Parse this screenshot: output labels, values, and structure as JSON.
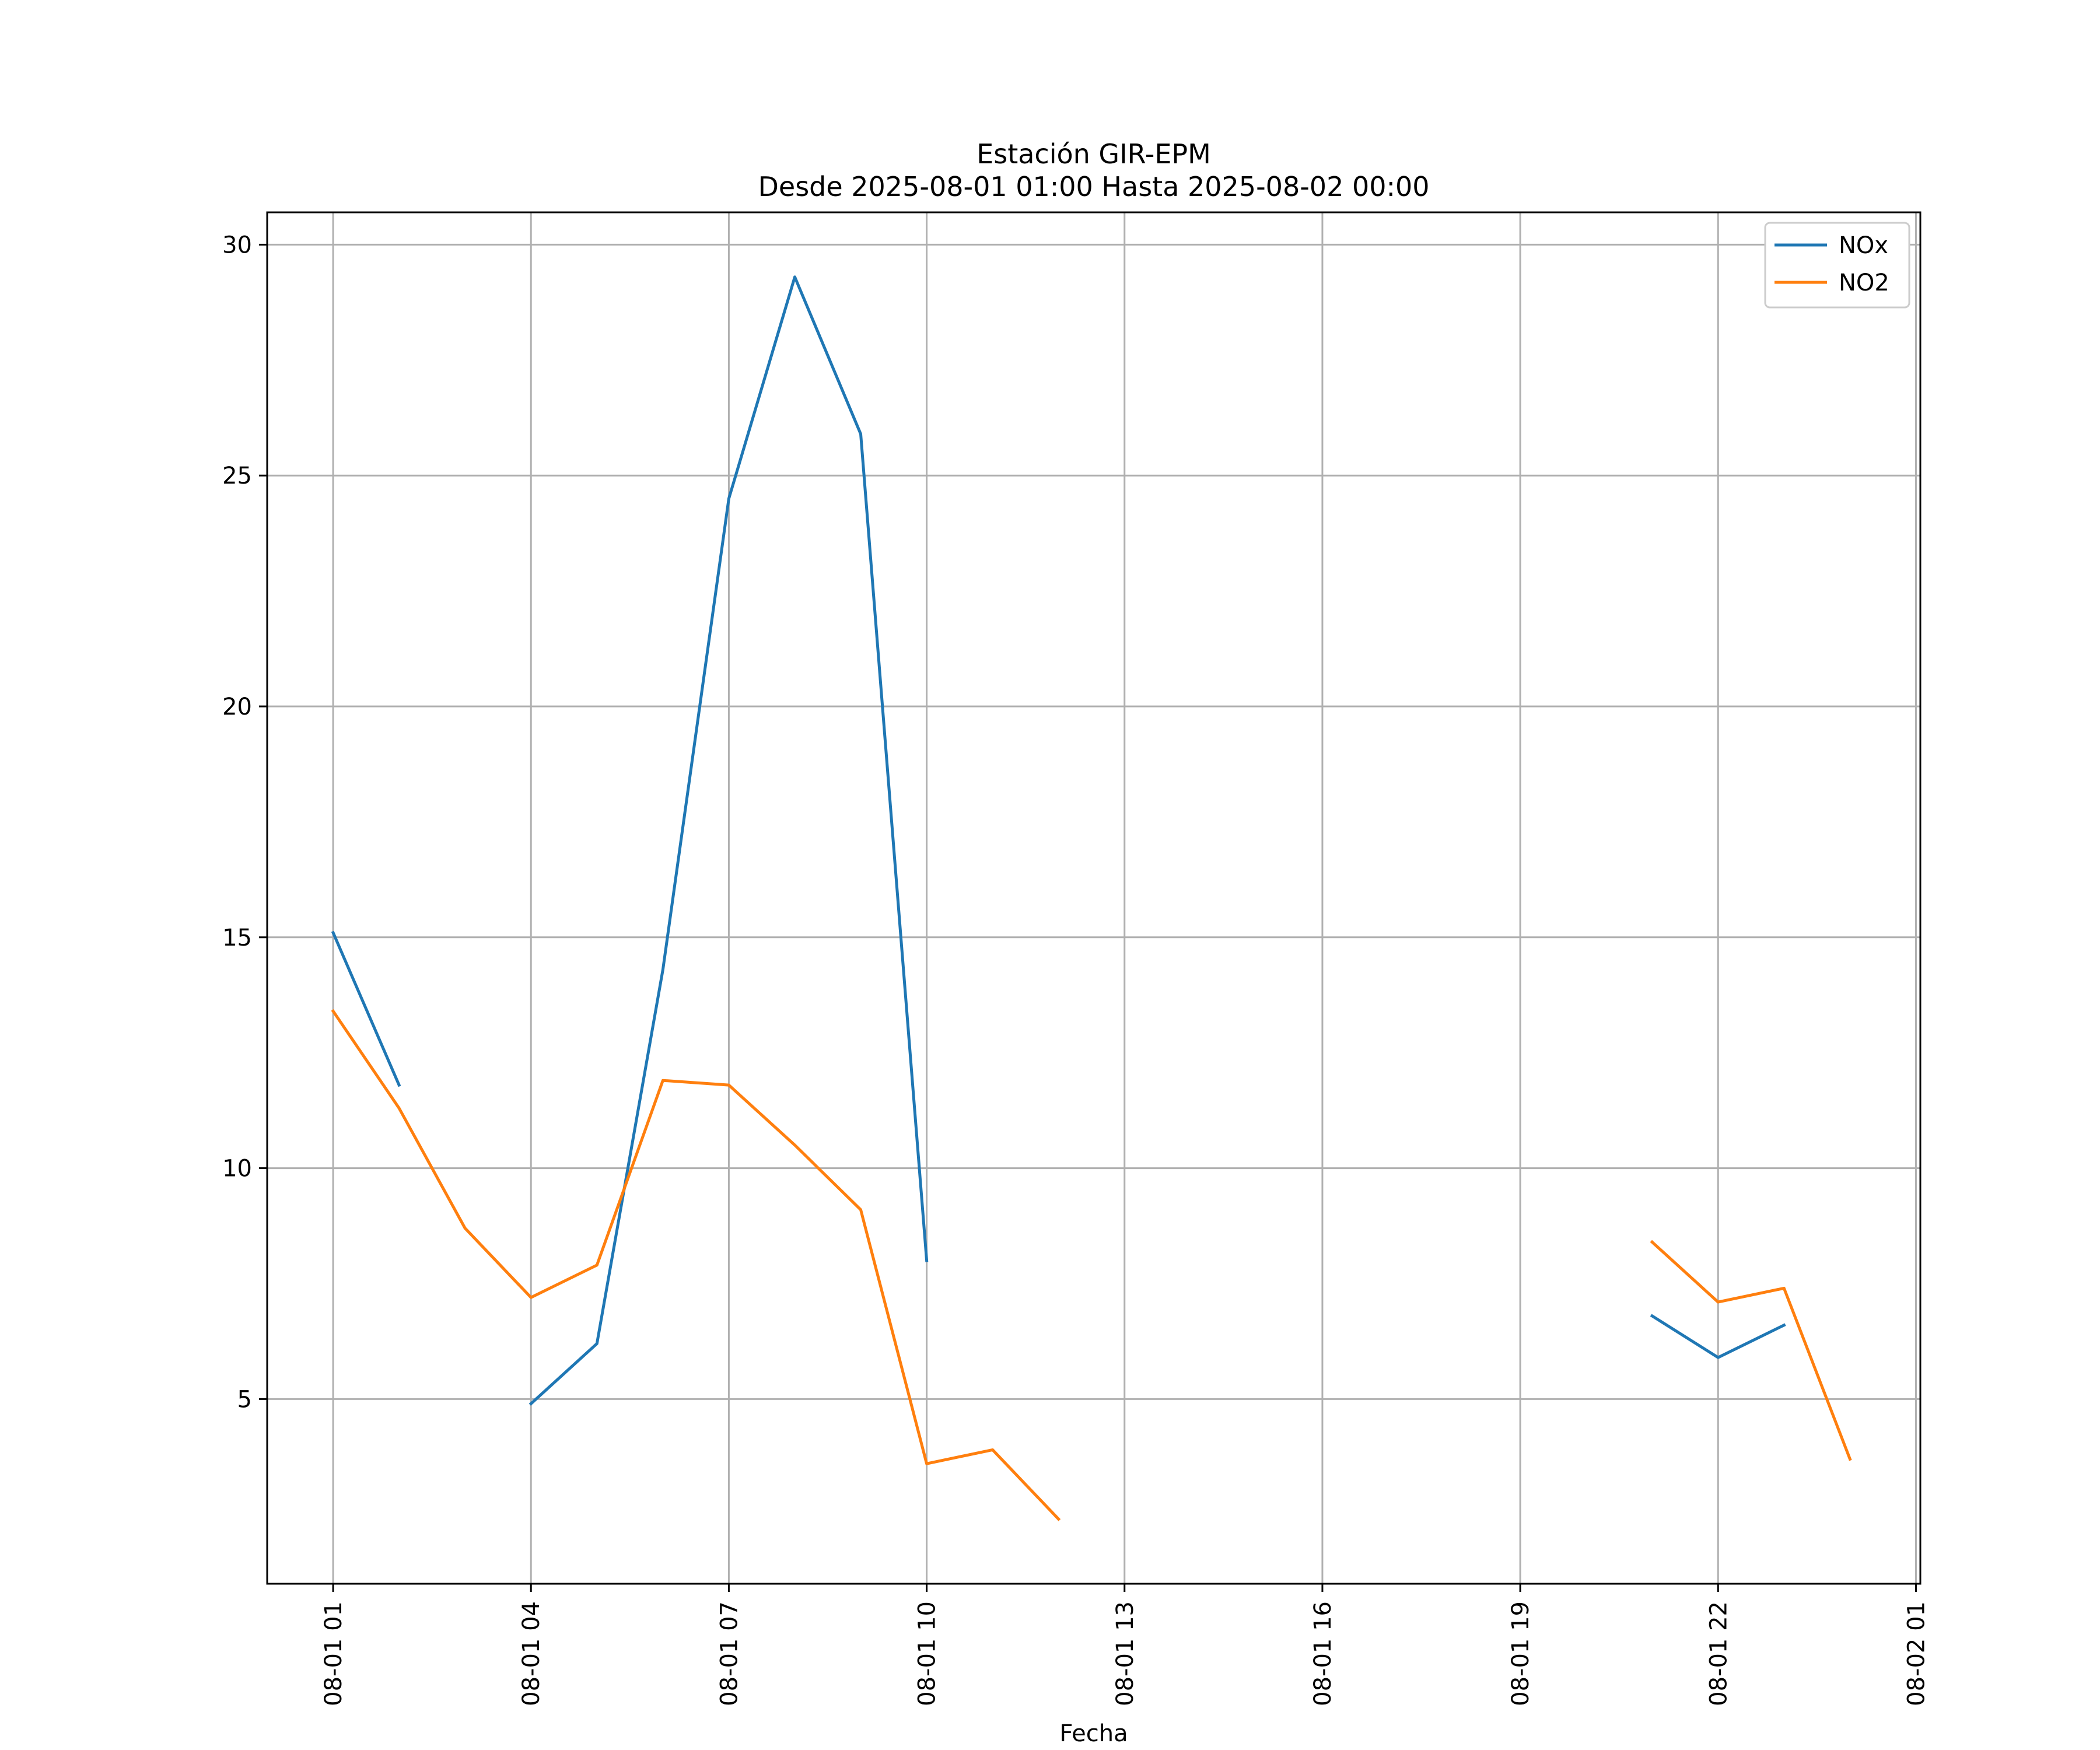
{
  "chart_data": {
    "type": "line",
    "title_line1": "Estación GIR-EPM",
    "title_line2": "Desde 2025-08-01 01:00 Hasta 2025-08-02 00:00",
    "xlabel": "Fecha",
    "ylabel": "",
    "xlim": [
      "2025-08-01 00:00",
      "2025-08-02 01:04"
    ],
    "ylim": [
      1.0,
      30.7
    ],
    "grid": true,
    "legend_position": "top-right",
    "x_ticks": [
      {
        "value": "2025-08-01 01:00",
        "label": "08-01 01"
      },
      {
        "value": "2025-08-01 04:00",
        "label": "08-01 04"
      },
      {
        "value": "2025-08-01 07:00",
        "label": "08-01 07"
      },
      {
        "value": "2025-08-01 10:00",
        "label": "08-01 10"
      },
      {
        "value": "2025-08-01 13:00",
        "label": "08-01 13"
      },
      {
        "value": "2025-08-01 16:00",
        "label": "08-01 16"
      },
      {
        "value": "2025-08-01 19:00",
        "label": "08-01 19"
      },
      {
        "value": "2025-08-01 22:00",
        "label": "08-01 22"
      },
      {
        "value": "2025-08-02 01:00",
        "label": "08-02 01"
      }
    ],
    "y_ticks": [
      {
        "value": 5,
        "label": "5"
      },
      {
        "value": 10,
        "label": "10"
      },
      {
        "value": 15,
        "label": "15"
      },
      {
        "value": 20,
        "label": "20"
      },
      {
        "value": 25,
        "label": "25"
      },
      {
        "value": 30,
        "label": "30"
      }
    ],
    "x": [
      "2025-08-01 01:00",
      "2025-08-01 02:00",
      "2025-08-01 03:00",
      "2025-08-01 04:00",
      "2025-08-01 05:00",
      "2025-08-01 06:00",
      "2025-08-01 07:00",
      "2025-08-01 08:00",
      "2025-08-01 09:00",
      "2025-08-01 10:00",
      "2025-08-01 11:00",
      "2025-08-01 12:00",
      "2025-08-01 13:00",
      "2025-08-01 14:00",
      "2025-08-01 15:00",
      "2025-08-01 16:00",
      "2025-08-01 17:00",
      "2025-08-01 18:00",
      "2025-08-01 19:00",
      "2025-08-01 20:00",
      "2025-08-01 21:00",
      "2025-08-01 22:00",
      "2025-08-01 23:00",
      "2025-08-02 00:00"
    ],
    "series": [
      {
        "name": "NOx",
        "color": "#1f77b4",
        "values": [
          15.1,
          11.8,
          null,
          4.9,
          6.2,
          14.3,
          24.5,
          29.3,
          25.9,
          8.0,
          null,
          null,
          null,
          null,
          null,
          null,
          null,
          null,
          null,
          null,
          6.8,
          5.9,
          6.6,
          null
        ]
      },
      {
        "name": "NO2",
        "color": "#ff7f0e",
        "values": [
          13.4,
          11.3,
          8.7,
          7.2,
          7.9,
          11.9,
          11.8,
          10.5,
          9.1,
          3.6,
          3.9,
          2.4,
          null,
          null,
          null,
          null,
          null,
          null,
          null,
          null,
          8.4,
          7.1,
          7.4,
          3.7
        ]
      }
    ]
  }
}
